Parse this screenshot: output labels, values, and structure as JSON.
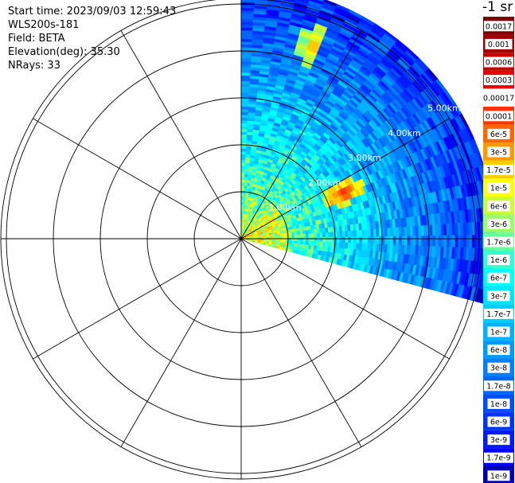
{
  "header": {
    "start_time": "Start time: 2023/09/03 12:59:43",
    "instrument": "WLS200s-181",
    "field": "Field: BETA",
    "elevation": "Elevation(deg): 35.30",
    "nrays": "NRays: 33"
  },
  "colorbar": {
    "title": "-1 sr",
    "ticks": [
      "0.0017",
      "0.001",
      "0.0006",
      "0.0003",
      "0.00017",
      "0.0001",
      "6e-5",
      "3e-5",
      "1.7e-5",
      "1e-5",
      "6e-6",
      "3e-6",
      "1.7e-6",
      "1e-6",
      "6e-7",
      "3e-7",
      "1.7e-7",
      "1e-7",
      "6e-8",
      "3e-8",
      "1.7e-8",
      "1e-8",
      "6e-9",
      "3e-9",
      "1.7e-9",
      "1e-9"
    ],
    "colors": [
      "#7f0000",
      "#a00000",
      "#c80000",
      "#e60000",
      "#ffffff",
      "#ff3300",
      "#ff6600",
      "#ff9900",
      "#ffcc00",
      "#ffff00",
      "#ccff33",
      "#99ff66",
      "#66ff99",
      "#33ffcc",
      "#00ffff",
      "#00e5ff",
      "#00ccff",
      "#00b2ff",
      "#0099ff",
      "#007fff",
      "#0066ff",
      "#004cff",
      "#0033ff",
      "#0019ff",
      "#0000ff",
      "#0000b0"
    ]
  },
  "chart_data": {
    "type": "heatmap",
    "projection": "polar-ppi",
    "field": "BETA",
    "units": "sr-1",
    "range_rings_km": [
      1,
      2,
      3,
      4,
      5
    ],
    "ring_labels": [
      "1.00km",
      "2.00km",
      "3.00km",
      "4.00km",
      "5.00km"
    ],
    "azimuth_spokes_deg": [
      0,
      30,
      60,
      90,
      120,
      150,
      180,
      210,
      240,
      270,
      300,
      330
    ],
    "max_range_km": 5.4,
    "scan_sector_deg": [
      0,
      105
    ],
    "nrays": 33,
    "color_scale": "log",
    "color_limits": [
      "1e-9",
      "0.0017"
    ],
    "plumes": [
      {
        "azimuth_deg": 20,
        "range_km": 4.4,
        "value": "3e-5"
      },
      {
        "azimuth_deg": 66,
        "range_km": 2.4,
        "value": "1e-4"
      }
    ]
  }
}
